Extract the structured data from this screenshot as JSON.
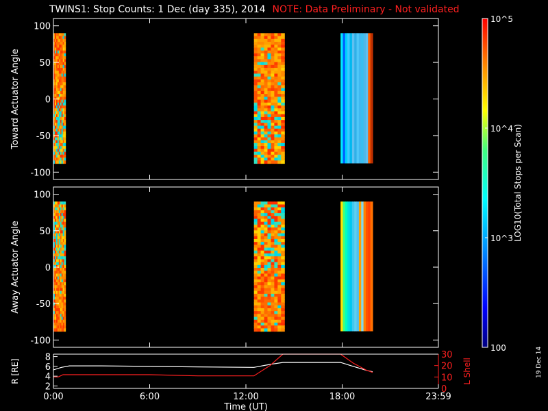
{
  "header": {
    "title": "TWINS1: Stop Counts:  1 Dec (day 335), 2014",
    "note": "NOTE: Data Preliminary - Not validated"
  },
  "footer": {
    "date_stamp": "19 Dec 14"
  },
  "colors": {
    "background": "#000000",
    "axes": "#ffffff",
    "note": "#ff2020",
    "r_line": "#ffffff",
    "lshell_line": "#ff2020"
  },
  "chart_data": [
    {
      "type": "heatmap",
      "ylabel": "Toward Actuator Angle",
      "ylim": [
        -110,
        110
      ],
      "yticks": [
        100,
        50,
        0,
        -50,
        -100
      ],
      "xlim": [
        0,
        24
      ],
      "x_tick_labels": [
        "",
        "",
        "",
        "",
        ""
      ],
      "angle_range": [
        -88,
        90
      ],
      "data_blocks": [
        {
          "start_hour": 0.0,
          "end_hour": 0.75,
          "pattern": "orange, blue-red striped near top, cyan/yellow mottled below 0"
        },
        {
          "start_hour": 12.5,
          "end_hour": 14.4,
          "pattern": "orange/yellow with swept cyan/red streaks, mottled below -10"
        },
        {
          "start_hour": 17.9,
          "end_hour": 19.9,
          "pattern": "vertical stripes: cyan, blue, light blue, with red/orange right edge"
        }
      ]
    },
    {
      "type": "heatmap",
      "ylabel": "Away Actuator Angle",
      "ylim": [
        -110,
        110
      ],
      "yticks": [
        100,
        50,
        0,
        -50,
        -100
      ],
      "xlim": [
        0,
        24
      ],
      "x_tick_labels": [
        "",
        "",
        "",
        "",
        ""
      ],
      "angle_range": [
        -88,
        90
      ],
      "data_blocks": [
        {
          "start_hour": 0.0,
          "end_hour": 0.75,
          "pattern": "orange/yellow mottled above 0, smooth orange below"
        },
        {
          "start_hour": 12.5,
          "end_hour": 14.4,
          "pattern": "mottled orange/red above 0, smooth orange/yellow below with cyan streaks"
        },
        {
          "start_hour": 17.9,
          "end_hour": 19.9,
          "pattern": "vertical stripes: yellow, green, cyan, light blue, orange right edge"
        }
      ]
    },
    {
      "type": "line",
      "xlabel": "Time (UT)",
      "ylabel": "R [RE]",
      "y2label": "L Shell",
      "xlim": [
        0,
        24
      ],
      "x_tick_labels": [
        "0:00",
        "6:00",
        "12:00",
        "18:00",
        "23:59"
      ],
      "ylim": [
        1.5,
        8.5
      ],
      "yticks": [
        2,
        4,
        6,
        8
      ],
      "y2lim": [
        0,
        30
      ],
      "y2ticks": [
        0,
        10,
        20,
        30
      ],
      "series": [
        {
          "name": "R",
          "x": [
            0,
            0.5,
            1,
            3,
            6,
            9,
            12.5,
            13.5,
            14.3,
            16,
            17.9,
            18.7,
            19.5,
            19.9
          ],
          "values": [
            5.3,
            5.8,
            6.1,
            6.1,
            6.0,
            5.9,
            5.8,
            6.4,
            6.8,
            6.8,
            6.8,
            6.0,
            5.2,
            4.9
          ],
          "axis": "left"
        },
        {
          "name": "L Shell",
          "x": [
            0,
            0.3,
            0.6,
            1,
            3,
            6,
            9,
            12.5,
            13.5,
            14.3,
            17.9,
            18.7,
            19.5,
            19.9
          ],
          "values": [
            10,
            10,
            12,
            12,
            12,
            12,
            11,
            11,
            20,
            30,
            30,
            22,
            16,
            14
          ],
          "axis": "right"
        }
      ]
    }
  ],
  "colorbar": {
    "label": "LOG10(Total Stops per Scan)",
    "tick_labels": [
      "100",
      "10^3",
      "10^4",
      "10^5"
    ],
    "tick_values": [
      100,
      1000,
      10000,
      100000
    ],
    "scale": "log",
    "range": [
      100,
      100000
    ]
  }
}
